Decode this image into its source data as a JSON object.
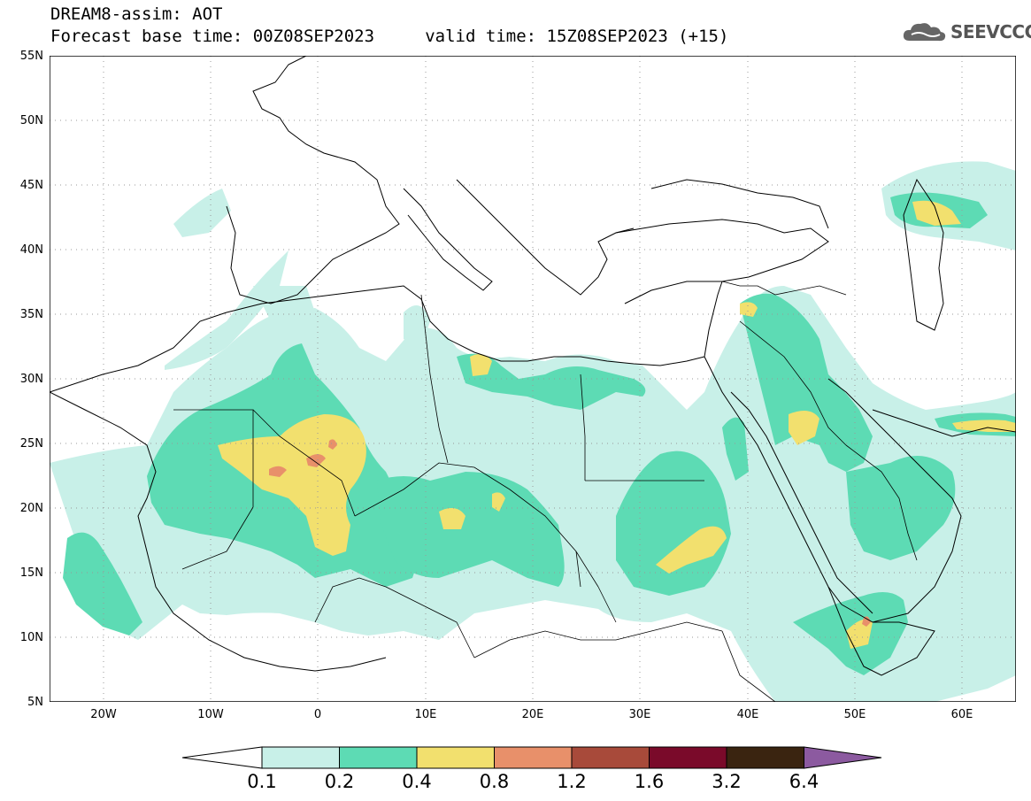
{
  "header": {
    "title_line1": "DREAM8-assim: AOT",
    "title_line2": "Forecast base time: 00Z08SEP2023     valid time: 15Z08SEP2023 (+15)"
  },
  "logo": {
    "text": "SEEVCCC",
    "icon": "cloud-icon"
  },
  "map": {
    "lat_labels": [
      "55N",
      "50N",
      "45N",
      "40N",
      "35N",
      "30N",
      "25N",
      "20N",
      "15N",
      "10N",
      "5N"
    ],
    "lon_labels": [
      "20W",
      "10W",
      "0",
      "10E",
      "20E",
      "30E",
      "40E",
      "50E",
      "60E"
    ],
    "lat_range": [
      5,
      55
    ],
    "lon_range": [
      -25,
      65
    ],
    "grid": "dotted"
  },
  "colorbar": {
    "labels": [
      "0.1",
      "0.2",
      "0.4",
      "0.8",
      "1.2",
      "1.6",
      "3.2",
      "6.4"
    ],
    "colors": [
      "#ffffff",
      "#c8f0e8",
      "#5ddbb4",
      "#f2e06e",
      "#e8906a",
      "#a84a3a",
      "#7a0a2a",
      "#3a2410",
      "#8c5aa0"
    ]
  }
}
